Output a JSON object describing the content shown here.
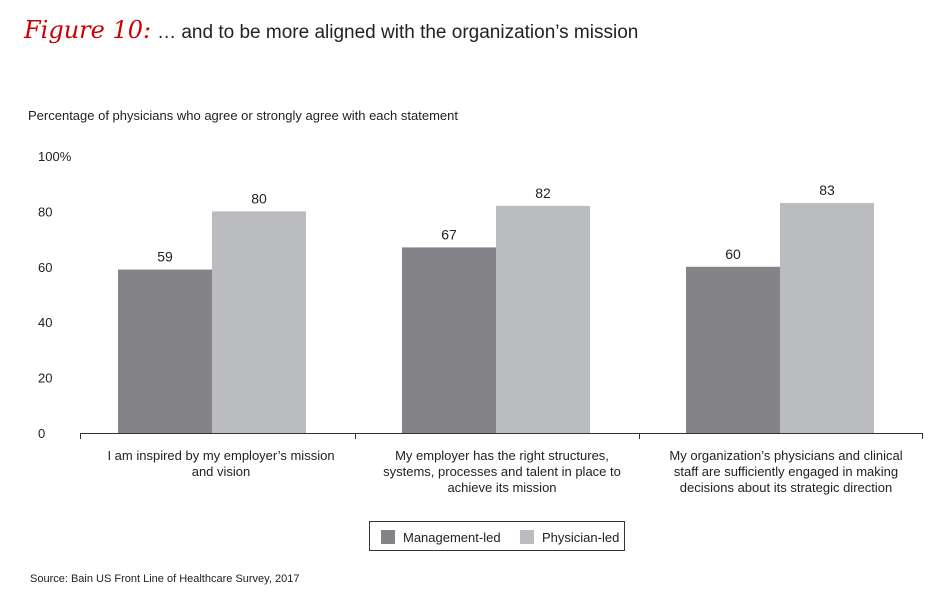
{
  "header": {
    "figure_label": "Figure 10:",
    "title": "… and to be more aligned with the organization’s mission"
  },
  "subtitle": "Percentage of physicians who agree or strongly agree with each statement",
  "source": "Source: Bain US Front Line of Healthcare Survey, 2017",
  "legend": {
    "items": [
      {
        "label": "Management-led",
        "color": "#848488"
      },
      {
        "label": "Physician-led",
        "color": "#bbbcbf"
      }
    ]
  },
  "chart_data": {
    "type": "bar",
    "categories": [
      "I am inspired by my employer’s mission and vision",
      "My employer has the right structures, systems, processes and talent in place to achieve its mission",
      "My organization’s physicians and clinical staff are sufficiently engaged in making decisions about its strategic direction"
    ],
    "series": [
      {
        "name": "Management-led",
        "values": [
          59,
          67,
          60
        ],
        "color": "#848488"
      },
      {
        "name": "Physician-led",
        "values": [
          80,
          82,
          83
        ],
        "color": "#bbbcbf"
      }
    ],
    "yticks": [
      "0",
      "20",
      "40",
      "60",
      "80",
      "100%"
    ],
    "ylim": [
      0,
      100
    ],
    "grid": false,
    "legend_position": "bottom"
  }
}
